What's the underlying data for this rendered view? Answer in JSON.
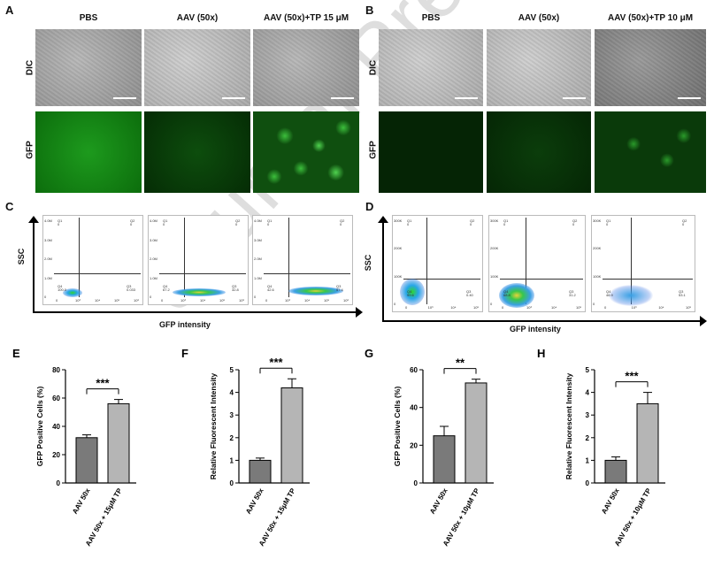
{
  "panels": {
    "A": {
      "label": "A",
      "cols": [
        "PBS",
        "AAV (50x)",
        "AAV (50x)+TP 15 μM"
      ],
      "rows": [
        "DIC",
        "GFP"
      ]
    },
    "B": {
      "label": "B",
      "cols": [
        "PBS",
        "AAV (50x)",
        "AAV (50x)+TP 10 μM"
      ],
      "rows": [
        "DIC",
        "GFP"
      ]
    },
    "C": {
      "label": "C",
      "ylabel": "SSC",
      "xlabel": "GFP intensity",
      "ticks_y": [
        "4.0M",
        "3.0M",
        "2.0M",
        "1.0M",
        "0"
      ],
      "ticks_x": [
        "0",
        "10³",
        "10⁴",
        "10⁵",
        "10⁶"
      ],
      "plots": [
        {
          "q1": "Q1",
          "q1v": "0",
          "q2": "Q2",
          "q2v": "0",
          "q3": "Q3",
          "q3v": "0.033",
          "q4": "Q4",
          "q4v": "100.0"
        },
        {
          "q1": "Q1",
          "q1v": "0",
          "q2": "Q2",
          "q2v": "0",
          "q3": "Q3",
          "q3v": "32.8",
          "q4": "Q4",
          "q4v": "67.2"
        },
        {
          "q1": "Q1",
          "q1v": "0",
          "q2": "Q2",
          "q2v": "0",
          "q3": "Q3",
          "q3v": "57.4",
          "q4": "Q4",
          "q4v": "42.6"
        }
      ]
    },
    "D": {
      "label": "D",
      "ylabel": "SSC",
      "xlabel": "GFP intensity",
      "ticks_y": [
        "300K",
        "200K",
        "100K",
        "0"
      ],
      "ticks_x": [
        "0",
        "10³",
        "10⁴",
        "10⁵"
      ],
      "plots": [
        {
          "q1": "Q1",
          "q1v": "0",
          "q2": "Q2",
          "q2v": "0",
          "q3": "Q3",
          "q3v": "0.40",
          "q4": "Q4",
          "q4v": "99.6"
        },
        {
          "q1": "Q1",
          "q1v": "0",
          "q2": "Q2",
          "q2v": "0",
          "q3": "Q3",
          "q3v": "31.2",
          "q4": "Q4",
          "q4v": "68.8"
        },
        {
          "q1": "Q1",
          "q1v": "0",
          "q2": "Q2",
          "q2v": "0",
          "q3": "Q3",
          "q3v": "53.1",
          "q4": "Q4",
          "q4v": "46.9"
        }
      ]
    }
  },
  "chart_data": [
    {
      "panel": "E",
      "type": "bar",
      "categories": [
        "AAV 50x",
        "AAV 50x + 15μM TP"
      ],
      "values": [
        32,
        56
      ],
      "errors": [
        2,
        3
      ],
      "ylabel": "GFP Positive Cells (%)",
      "ylim": [
        0,
        80
      ],
      "yticks": [
        0,
        20,
        40,
        60,
        80
      ],
      "significance": "***"
    },
    {
      "panel": "F",
      "type": "bar",
      "categories": [
        "AAV 50x",
        "AAV 50x + 15μM TP"
      ],
      "values": [
        1.0,
        4.2
      ],
      "errors": [
        0.1,
        0.4
      ],
      "ylabel": "Relative Fluorescent Intensity",
      "ylim": [
        0,
        5
      ],
      "yticks": [
        0,
        1,
        2,
        3,
        4,
        5
      ],
      "significance": "***"
    },
    {
      "panel": "G",
      "type": "bar",
      "categories": [
        "AAV 50x",
        "AAV 50x + 10μM TP"
      ],
      "values": [
        25,
        53
      ],
      "errors": [
        5,
        2
      ],
      "ylabel": "GFP Positive Cells (%)",
      "ylim": [
        0,
        60
      ],
      "yticks": [
        0,
        20,
        40,
        60
      ],
      "significance": "**"
    },
    {
      "panel": "H",
      "type": "bar",
      "categories": [
        "AAV 50x",
        "AAV 50x + 10μM TP"
      ],
      "values": [
        1.0,
        3.5
      ],
      "errors": [
        0.15,
        0.5
      ],
      "ylabel": "Relative Fluorescent Intensity",
      "ylim": [
        0,
        5
      ],
      "yticks": [
        0,
        1,
        2,
        3,
        4,
        5
      ],
      "significance": "***"
    }
  ],
  "colors": {
    "bar_left": "#7a7a7a",
    "bar_right": "#b5b5b5"
  },
  "watermark": "Journal Pre-proof"
}
